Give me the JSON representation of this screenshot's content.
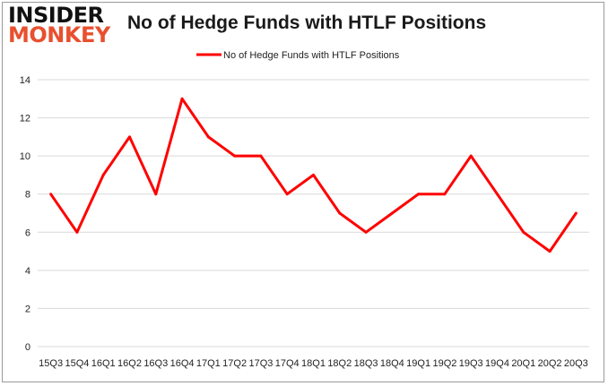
{
  "logo": {
    "line1": "INSIDER",
    "line2": "MONKEY"
  },
  "colors": {
    "series": "#ff0000",
    "grid": "#d9d9d9",
    "logo_accent": "#e8502f"
  },
  "chart_data": {
    "type": "line",
    "title": "No of Hedge Funds with HTLF Positions",
    "xlabel": "",
    "ylabel": "",
    "x": [
      "15Q3",
      "15Q4",
      "16Q1",
      "16Q2",
      "16Q3",
      "16Q4",
      "17Q1",
      "17Q2",
      "17Q3",
      "17Q4",
      "18Q1",
      "18Q2",
      "18Q3",
      "18Q4",
      "19Q1",
      "19Q2",
      "19Q3",
      "19Q4",
      "20Q1",
      "20Q2",
      "20Q3"
    ],
    "series": [
      {
        "name": "No of Hedge Funds with HTLF Positions",
        "values": [
          8,
          6,
          9,
          11,
          8,
          13,
          11,
          10,
          10,
          8,
          9,
          7,
          6,
          7,
          8,
          8,
          10,
          8,
          6,
          5,
          7
        ]
      }
    ],
    "ylim": [
      0,
      14
    ],
    "yticks": [
      0,
      2,
      4,
      6,
      8,
      10,
      12,
      14
    ],
    "grid": "horizontal",
    "legend": "top-center"
  }
}
